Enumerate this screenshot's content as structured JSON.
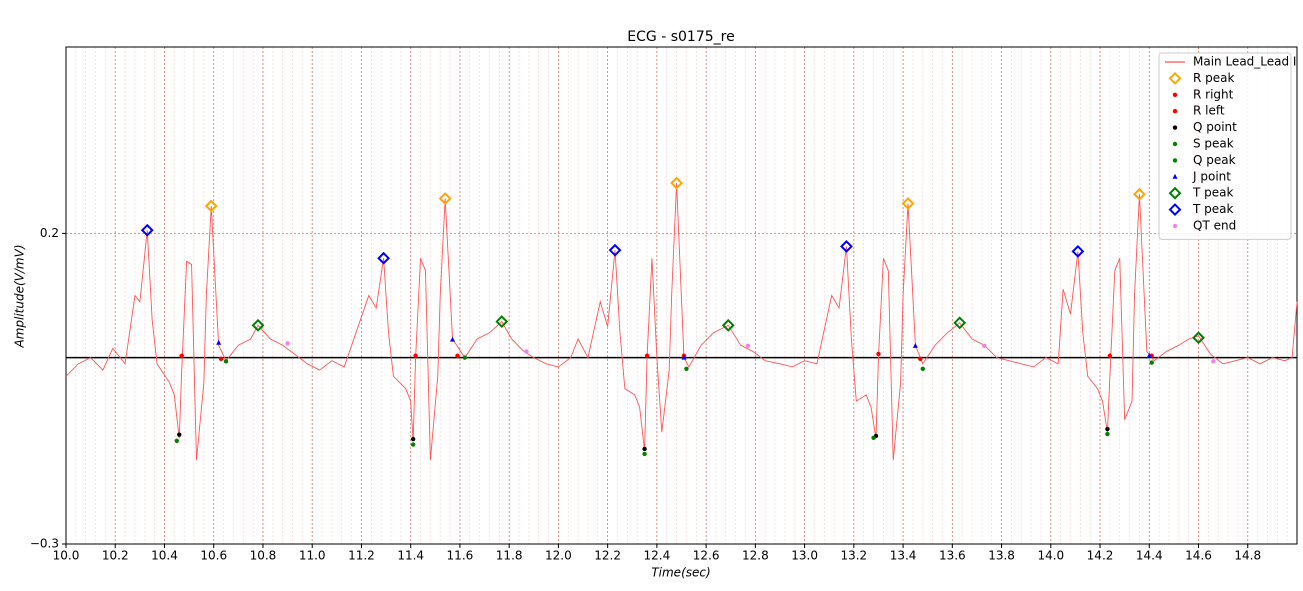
{
  "chart_data": {
    "type": "line",
    "title": "ECG - s0175_re",
    "xlabel": "Time(sec)",
    "ylabel": "Amplitude(V/mV)",
    "xlim": [
      10,
      15
    ],
    "ylim": [
      -0.3,
      0.5
    ],
    "xticks": [
      {
        "value": 10,
        "label": "10.0"
      },
      10.2,
      10.4,
      10.6,
      10.8,
      {
        "value": 11,
        "label": "11.0"
      },
      11.2,
      11.4,
      11.6,
      11.8,
      {
        "value": 12,
        "label": "12.0"
      },
      12.2,
      12.4,
      12.6,
      12.8,
      {
        "value": 13,
        "label": "13.0"
      },
      13.2,
      13.4,
      13.6,
      13.8,
      {
        "value": 14,
        "label": "14.0"
      },
      14.2,
      14.4,
      14.6,
      14.8
    ],
    "yticks": [
      {
        "value": -0.3,
        "label": "−0.3"
      },
      0.2
    ],
    "grid": true,
    "baseline": 0,
    "legend": "upper right",
    "series": [
      {
        "name": "Main Lead_Lead I",
        "color": "#ff5555",
        "marker": "line",
        "x": [
          10.0,
          10.05,
          10.1,
          10.15,
          10.19,
          10.24,
          10.28,
          10.3,
          10.33,
          10.35,
          10.37,
          10.42,
          10.44,
          10.46,
          10.47,
          10.49,
          10.51,
          10.53,
          10.56,
          10.57,
          10.59,
          10.62,
          10.65,
          10.7,
          10.75,
          10.78,
          10.83,
          10.88,
          10.93,
          10.98,
          11.03,
          11.08,
          11.13,
          11.23,
          11.26,
          11.29,
          11.31,
          11.33,
          11.38,
          11.4,
          11.41,
          11.42,
          11.44,
          11.46,
          11.48,
          11.51,
          11.52,
          11.54,
          11.57,
          11.62,
          11.67,
          11.72,
          11.77,
          11.81,
          11.86,
          11.9,
          11.95,
          12.0,
          12.05,
          12.08,
          12.12,
          12.17,
          12.2,
          12.23,
          12.25,
          12.27,
          12.31,
          12.33,
          12.35,
          12.36,
          12.38,
          12.4,
          12.42,
          12.45,
          12.46,
          12.48,
          12.51,
          12.53,
          12.58,
          12.63,
          12.69,
          12.74,
          12.79,
          12.84,
          12.9,
          12.95,
          13.0,
          13.05,
          13.11,
          13.14,
          13.17,
          13.19,
          13.21,
          13.25,
          13.27,
          13.29,
          13.3,
          13.32,
          13.34,
          13.36,
          13.39,
          13.4,
          13.42,
          13.45,
          13.48,
          13.53,
          13.58,
          13.63,
          13.68,
          13.73,
          13.78,
          13.83,
          13.88,
          13.93,
          13.98,
          14.03,
          14.05,
          14.08,
          14.11,
          14.13,
          14.15,
          14.19,
          14.21,
          14.23,
          14.24,
          14.26,
          14.28,
          14.3,
          14.33,
          14.34,
          14.36,
          14.39,
          14.42,
          14.47,
          14.52,
          14.56,
          14.6,
          14.65,
          14.7,
          14.75,
          14.8,
          14.85,
          14.9,
          14.95,
          14.98,
          15.0
        ],
        "values": [
          -0.03,
          -0.01,
          0.0,
          -0.02,
          0.015,
          -0.01,
          0.1,
          0.09,
          0.205,
          0.06,
          -0.01,
          -0.04,
          -0.06,
          -0.13,
          -0.02,
          0.155,
          0.15,
          -0.165,
          -0.04,
          0.1,
          0.244,
          0.02,
          -0.005,
          0.02,
          0.03,
          0.052,
          0.03,
          0.02,
          0.005,
          -0.01,
          -0.02,
          -0.005,
          -0.015,
          0.1,
          0.08,
          0.16,
          0.04,
          -0.03,
          -0.05,
          -0.07,
          -0.135,
          0.0,
          0.16,
          0.14,
          -0.165,
          -0.03,
          0.1,
          0.256,
          0.03,
          0.0,
          0.03,
          0.04,
          0.058,
          0.03,
          0.01,
          0.0,
          -0.01,
          -0.015,
          0.0,
          0.03,
          0.0,
          0.09,
          0.05,
          0.173,
          0.04,
          -0.05,
          -0.06,
          -0.08,
          -0.15,
          0.0,
          0.16,
          0.0,
          -0.12,
          -0.02,
          0.1,
          0.281,
          0.0,
          -0.015,
          0.02,
          0.04,
          0.052,
          0.02,
          0.01,
          -0.005,
          -0.01,
          -0.015,
          -0.005,
          -0.01,
          0.1,
          0.08,
          0.179,
          0.03,
          -0.07,
          -0.06,
          -0.08,
          -0.13,
          0.0,
          0.16,
          0.14,
          -0.165,
          -0.04,
          0.1,
          0.248,
          0.02,
          -0.01,
          0.02,
          0.04,
          0.056,
          0.03,
          0.02,
          0.0,
          -0.005,
          -0.01,
          -0.015,
          0.0,
          -0.01,
          0.11,
          0.07,
          0.171,
          0.04,
          -0.03,
          -0.05,
          -0.07,
          -0.12,
          -0.03,
          0.14,
          0.16,
          -0.1,
          -0.07,
          0.1,
          0.263,
          0.01,
          -0.005,
          0.01,
          0.02,
          0.03,
          0.035,
          0.005,
          -0.01,
          -0.005,
          0.0,
          -0.01,
          0.0,
          -0.005,
          0.0,
          0.09
        ]
      },
      {
        "name": "R peak",
        "color": "#ffa500",
        "marker": "diamond",
        "x": [
          10.59,
          11.54,
          12.48,
          13.42,
          14.36
        ],
        "values": [
          0.244,
          0.256,
          0.281,
          0.248,
          0.263
        ]
      },
      {
        "name": "R right",
        "color": "#ff0000",
        "marker": "dot",
        "x": [
          10.47,
          11.42,
          12.36,
          13.3,
          14.24
        ],
        "values": [
          0.003,
          0.003,
          0.003,
          0.006,
          0.003
        ]
      },
      {
        "name": "R left",
        "color": "#ff0000",
        "marker": "dot",
        "x": [
          10.63,
          11.59,
          12.51,
          13.47,
          14.41
        ],
        "values": [
          -0.002,
          0.003,
          0.003,
          -0.002,
          0.003
        ]
      },
      {
        "name": "Q point",
        "color": "#000000",
        "marker": "dot",
        "x": [
          10.46,
          11.41,
          12.35,
          13.29,
          14.23
        ],
        "values": [
          -0.124,
          -0.131,
          -0.147,
          -0.126,
          -0.115
        ]
      },
      {
        "name": "S peak",
        "color": "#008000",
        "marker": "dot",
        "x": [
          10.45,
          11.41,
          12.35,
          13.28,
          14.23
        ],
        "values": [
          -0.134,
          -0.14,
          -0.155,
          -0.129,
          -0.123
        ]
      },
      {
        "name": "Q peak",
        "color": "#008000",
        "marker": "dot",
        "x": [
          10.65,
          11.62,
          12.52,
          13.48,
          14.41
        ],
        "values": [
          -0.006,
          0.0,
          -0.018,
          -0.018,
          -0.008
        ]
      },
      {
        "name": "J point",
        "color": "#0000ff",
        "marker": "triangle",
        "x": [
          10.62,
          11.57,
          12.51,
          13.45,
          14.4
        ],
        "values": [
          0.024,
          0.029,
          0.0,
          0.019,
          0.003
        ]
      },
      {
        "name": "T peak",
        "color": "#008000",
        "marker": "diamond",
        "x": [
          10.78,
          11.77,
          12.69,
          13.63,
          14.6
        ],
        "values": [
          0.052,
          0.058,
          0.052,
          0.056,
          0.032
        ]
      },
      {
        "name": "T peak",
        "color": "#0000ff",
        "marker": "diamond",
        "x": [
          10.33,
          11.29,
          12.23,
          13.17,
          14.11
        ],
        "values": [
          0.205,
          0.16,
          0.173,
          0.179,
          0.171
        ]
      },
      {
        "name": "QT end",
        "color": "#ee82ee",
        "marker": "dot",
        "x": [
          10.9,
          11.87,
          12.77,
          13.73,
          14.66
        ],
        "values": [
          0.023,
          0.01,
          0.019,
          0.019,
          -0.006
        ]
      }
    ]
  }
}
